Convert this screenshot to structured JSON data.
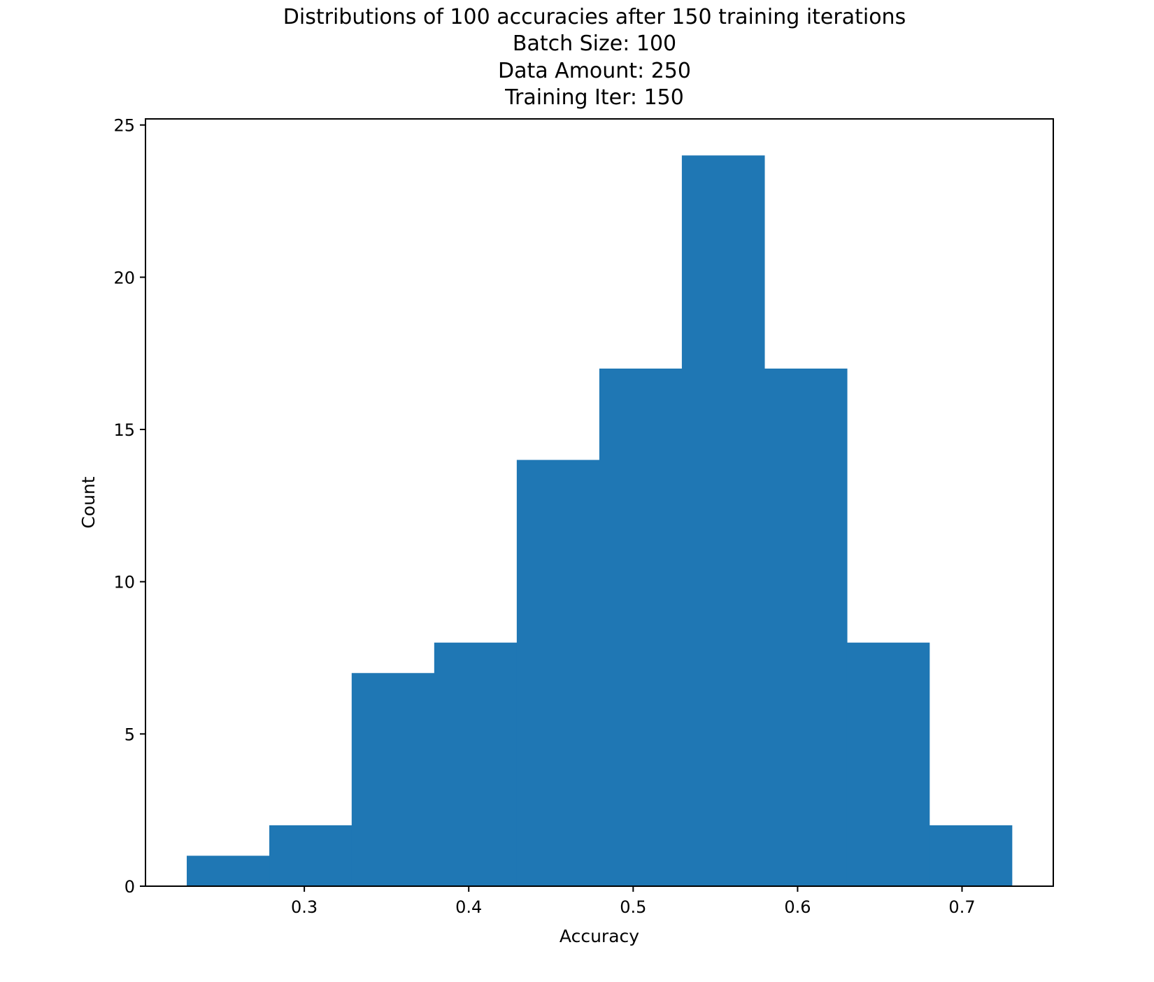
{
  "chart_data": {
    "type": "bar",
    "title_lines": [
      "Distributions of 100 accuracies after 150 training iterations",
      "Batch Size: 100",
      "Data Amount: 250",
      " Training Iter: 150"
    ],
    "xlabel": "Accuracy",
    "ylabel": "Count",
    "bin_edges": [
      0.2285,
      0.2787,
      0.3288,
      0.379,
      0.4292,
      0.4794,
      0.5296,
      0.5798,
      0.63,
      0.6801,
      0.7303
    ],
    "values": [
      1,
      2,
      7,
      8,
      14,
      17,
      24,
      17,
      8,
      2
    ],
    "xlim": [
      0.2034,
      0.7555
    ],
    "ylim": [
      0,
      25.2
    ],
    "xticks": [
      0.3,
      0.4,
      0.5,
      0.6,
      0.7
    ],
    "xtick_labels": [
      "0.3",
      "0.4",
      "0.5",
      "0.6",
      "0.7"
    ],
    "yticks": [
      0,
      5,
      10,
      15,
      20,
      25
    ],
    "ytick_labels": [
      "0",
      "5",
      "10",
      "15",
      "20",
      "25"
    ],
    "bar_color": "#1f77b4",
    "grid": false,
    "legend": "none"
  }
}
